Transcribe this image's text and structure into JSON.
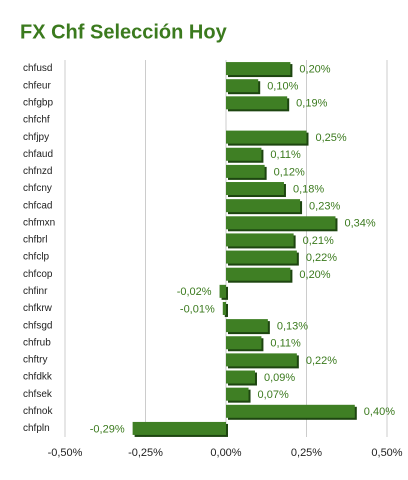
{
  "chart_data": {
    "type": "bar",
    "orientation": "horizontal",
    "title": "FX Chf Selección Hoy",
    "categories": [
      "chfusd",
      "chfeur",
      "chfgbp",
      "chfchf",
      "chfjpy",
      "chfaud",
      "chfnzd",
      "chfcny",
      "chfcad",
      "chfmxn",
      "chfbrl",
      "chfclp",
      "chfcop",
      "chfinr",
      "chfkrw",
      "chfsgd",
      "chfrub",
      "chftry",
      "chfdkk",
      "chfsek",
      "chfnok",
      "chfpln"
    ],
    "values": [
      0.2,
      0.1,
      0.19,
      null,
      0.25,
      0.11,
      0.12,
      0.18,
      0.23,
      0.34,
      0.21,
      0.22,
      0.2,
      -0.02,
      -0.01,
      0.13,
      0.11,
      0.22,
      0.09,
      0.07,
      0.4,
      -0.29
    ],
    "value_labels": [
      "0,20%",
      "0,10%",
      "0,19%",
      null,
      "0,25%",
      "0,11%",
      "0,12%",
      "0,18%",
      "0,23%",
      "0,34%",
      "0,21%",
      "0,22%",
      "0,20%",
      "-0,02%",
      "-0,01%",
      "0,13%",
      "0,11%",
      "0,22%",
      "0,09%",
      "0,07%",
      "0,40%",
      "-0,29%"
    ],
    "color": "#3f7f24",
    "xlim": [
      -0.5,
      0.5
    ],
    "xticks": [
      {
        "value": -0.5,
        "label": "-0,50%"
      },
      {
        "value": -0.25,
        "label": "-0,25%"
      },
      {
        "value": 0,
        "label": "0,00%"
      },
      {
        "value": 0.25,
        "label": "0,25%"
      },
      {
        "value": 0.5,
        "label": "0,50%"
      }
    ],
    "grid": true
  }
}
